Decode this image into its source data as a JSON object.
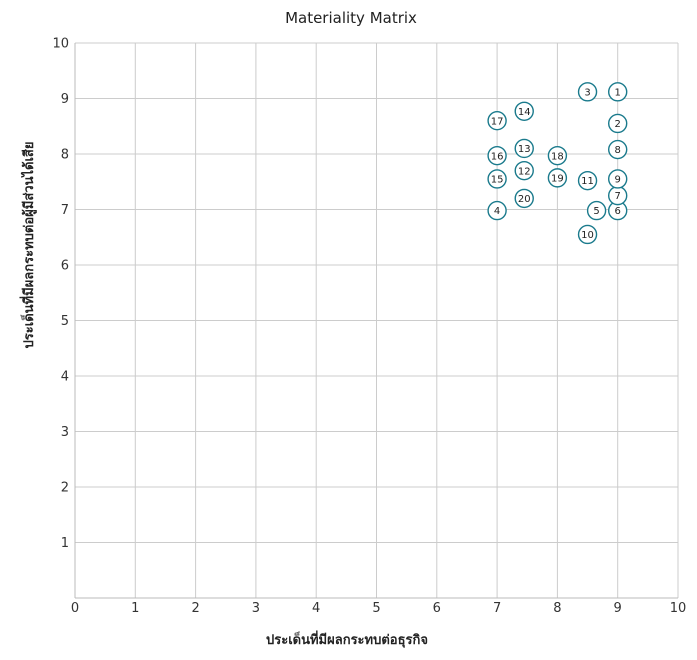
{
  "chart_data": {
    "type": "scatter",
    "title": "Materiality Matrix",
    "xlabel": "ประเด็นที่มีผลกระทบต่อธุรกิจ",
    "ylabel": "ประเด็นที่มีผลกระทบต่อผู้มีส่วนได้เสีย",
    "xlim": [
      0,
      10
    ],
    "ylim": [
      0,
      10
    ],
    "x_ticks": [
      "0",
      "1",
      "2",
      "3",
      "4",
      "5",
      "6",
      "7",
      "8",
      "9",
      "10"
    ],
    "y_ticks": [
      "1",
      "2",
      "3",
      "4",
      "5",
      "6",
      "7",
      "8",
      "9",
      "10"
    ],
    "grid": true,
    "marker_color": "#1a7a8c",
    "points": [
      {
        "label": "1",
        "x": 9.0,
        "y": 9.12
      },
      {
        "label": "2",
        "x": 9.0,
        "y": 8.55
      },
      {
        "label": "3",
        "x": 8.5,
        "y": 9.12
      },
      {
        "label": "4",
        "x": 7.0,
        "y": 6.98
      },
      {
        "label": "5",
        "x": 8.65,
        "y": 6.98
      },
      {
        "label": "6",
        "x": 9.0,
        "y": 6.98
      },
      {
        "label": "7",
        "x": 9.0,
        "y": 7.25
      },
      {
        "label": "8",
        "x": 9.0,
        "y": 8.08
      },
      {
        "label": "9",
        "x": 9.0,
        "y": 7.55
      },
      {
        "label": "10",
        "x": 8.5,
        "y": 6.55
      },
      {
        "label": "11",
        "x": 8.5,
        "y": 7.52
      },
      {
        "label": "12",
        "x": 7.45,
        "y": 7.7
      },
      {
        "label": "13",
        "x": 7.45,
        "y": 8.1
      },
      {
        "label": "14",
        "x": 7.45,
        "y": 8.77
      },
      {
        "label": "15",
        "x": 7.0,
        "y": 7.55
      },
      {
        "label": "16",
        "x": 7.0,
        "y": 7.97
      },
      {
        "label": "17",
        "x": 7.0,
        "y": 8.6
      },
      {
        "label": "18",
        "x": 8.0,
        "y": 7.97
      },
      {
        "label": "19",
        "x": 8.0,
        "y": 7.57
      },
      {
        "label": "20",
        "x": 7.45,
        "y": 7.2
      }
    ]
  }
}
